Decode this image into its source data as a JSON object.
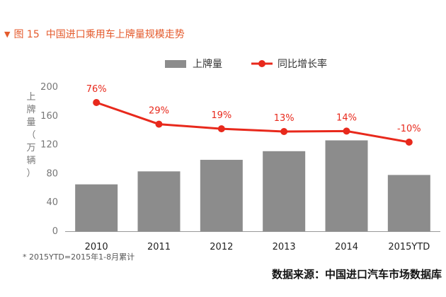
{
  "figure": {
    "marker": "▼",
    "number": "图 15",
    "title": "中国进口乘用车上牌量规模走势"
  },
  "colors": {
    "title": "#e45a2c",
    "bar": "#8c8c8c",
    "line": "#e8291c",
    "axis_text": "#777777"
  },
  "chart_data": {
    "type": "bar",
    "categories": [
      "2010",
      "2011",
      "2012",
      "2013",
      "2014",
      "2015YTD"
    ],
    "series": [
      {
        "name": "上牌量",
        "type": "bar",
        "values": [
          65,
          83,
          99,
          111,
          126,
          78
        ]
      },
      {
        "name": "同比增长率",
        "type": "line",
        "values": [
          76,
          29,
          19,
          13,
          14,
          -10
        ],
        "labels": [
          "76%",
          "29%",
          "19%",
          "13%",
          "14%",
          "-10%"
        ]
      }
    ],
    "ylabel": "上牌量（万辆）",
    "ylim": [
      0,
      200
    ],
    "yticks": [
      0,
      40,
      80,
      120,
      160,
      200
    ],
    "grid": false,
    "legend": "top-center"
  },
  "footnote": "* 2015YTD=2015年1-8月累计",
  "source": "数据来源：中国进口汽车市场数据库"
}
